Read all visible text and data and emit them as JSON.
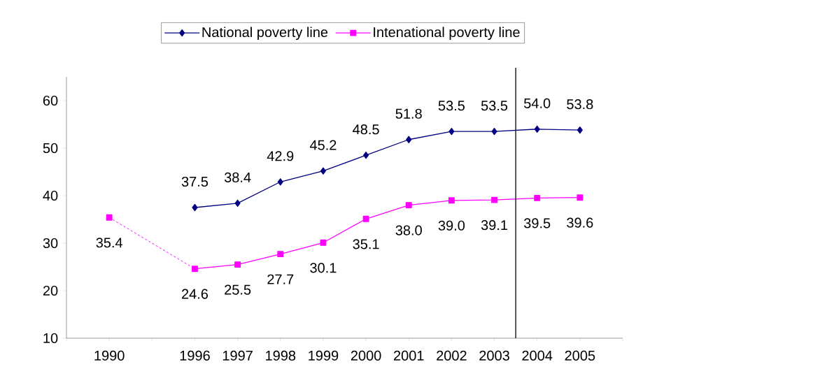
{
  "chart_data": {
    "type": "line",
    "categories": [
      null,
      "1990",
      null,
      "1996",
      "1997",
      "1998",
      "1999",
      "2000",
      "2001",
      "2002",
      "2003",
      "2004",
      "2005",
      null
    ],
    "series": [
      {
        "name": "National poverty line",
        "color": "#000080",
        "marker": "diamond",
        "line_style": "solid",
        "values": [
          null,
          null,
          null,
          37.5,
          38.4,
          42.9,
          45.2,
          48.5,
          51.8,
          53.5,
          53.5,
          54.0,
          53.8,
          null
        ],
        "value_labels": [
          null,
          null,
          null,
          "37.5",
          "38.4",
          "42.9",
          "45.2",
          "48.5",
          "51.8",
          "53.5",
          "53.5",
          "54.0",
          "53.8",
          null
        ]
      },
      {
        "name": "Intenational poverty line",
        "color": "#ff00ff",
        "marker": "square",
        "line_style": "solid",
        "values": [
          null,
          35.4,
          null,
          24.6,
          25.5,
          27.7,
          30.1,
          35.1,
          38.0,
          39.0,
          39.1,
          39.5,
          39.6,
          null
        ],
        "value_labels": [
          null,
          "35.4",
          null,
          "24.6",
          "25.5",
          "27.7",
          "30.1",
          "35.1",
          "38.0",
          "39.0",
          "39.1",
          "39.5",
          "39.6",
          null
        ]
      }
    ],
    "ylim": [
      10,
      65
    ],
    "yticks": [
      10,
      20,
      30,
      40,
      50,
      60
    ],
    "legend": "top",
    "grid": false
  }
}
